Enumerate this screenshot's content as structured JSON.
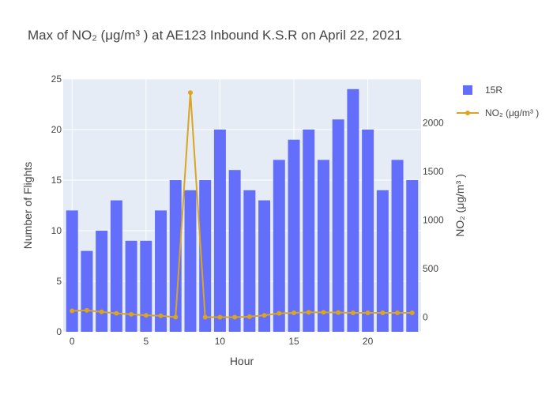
{
  "chart_data": {
    "type": "bar",
    "title": "Max of NO₂ (μg/m³ ) at AE123 Inbound K.S.R on April 22, 2021",
    "xlabel": "Hour",
    "ylabel": "Number of Flights",
    "y2label": "NO₂ (μg/m³ )",
    "xlim": [
      -0.6,
      23.6
    ],
    "ylim": [
      0,
      25
    ],
    "y2lim": [
      -150,
      2450
    ],
    "x_ticks": [
      0,
      5,
      10,
      15,
      20
    ],
    "y_ticks": [
      0,
      5,
      10,
      15,
      20,
      25
    ],
    "y2_ticks": [
      0,
      500,
      1000,
      1500,
      2000
    ],
    "x": [
      0,
      1,
      2,
      3,
      4,
      5,
      6,
      7,
      8,
      9,
      10,
      11,
      12,
      13,
      14,
      15,
      16,
      17,
      18,
      19,
      20,
      21,
      22,
      23
    ],
    "series": [
      {
        "name": "15R",
        "type": "bar",
        "axis": "y",
        "color": "#636efa",
        "values": [
          12,
          8,
          10,
          13,
          9,
          9,
          12,
          15,
          14,
          15,
          20,
          16,
          14,
          13,
          17,
          19,
          20,
          17,
          21,
          24,
          20,
          14,
          17,
          15
        ]
      },
      {
        "name": "NO₂ (μg/m³ )",
        "type": "line",
        "axis": "y2",
        "color": "#daa520",
        "values": [
          65,
          70,
          55,
          40,
          30,
          20,
          15,
          0,
          2310,
          0,
          0,
          0,
          5,
          20,
          40,
          45,
          50,
          50,
          48,
          45,
          45,
          45,
          45,
          45
        ]
      }
    ],
    "grid": true,
    "legend": "top-right"
  }
}
